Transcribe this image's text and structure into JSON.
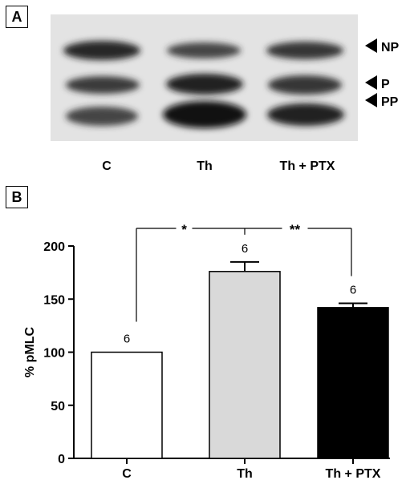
{
  "panels": {
    "a_label": "A",
    "b_label": "B"
  },
  "blot": {
    "band_labels": [
      "NP",
      "P",
      "PP"
    ],
    "lane_labels": [
      "C",
      "Th",
      "Th + PTX"
    ]
  },
  "chart_data": {
    "type": "bar",
    "categories": [
      "C",
      "Th",
      "Th + PTX"
    ],
    "values": [
      100,
      176,
      142
    ],
    "errors": [
      0,
      9,
      4
    ],
    "n_labels": [
      "6",
      "6",
      "6"
    ],
    "bar_colors": [
      "#ffffff",
      "#d9d9d9",
      "#000000"
    ],
    "ylabel": "% pMLC",
    "ylim": [
      0,
      200
    ],
    "yticks": [
      0,
      50,
      100,
      150,
      200
    ],
    "significance": [
      {
        "from": "C",
        "to": "Th",
        "label": "*"
      },
      {
        "from": "Th",
        "to": "Th + PTX",
        "label": "**"
      }
    ]
  }
}
